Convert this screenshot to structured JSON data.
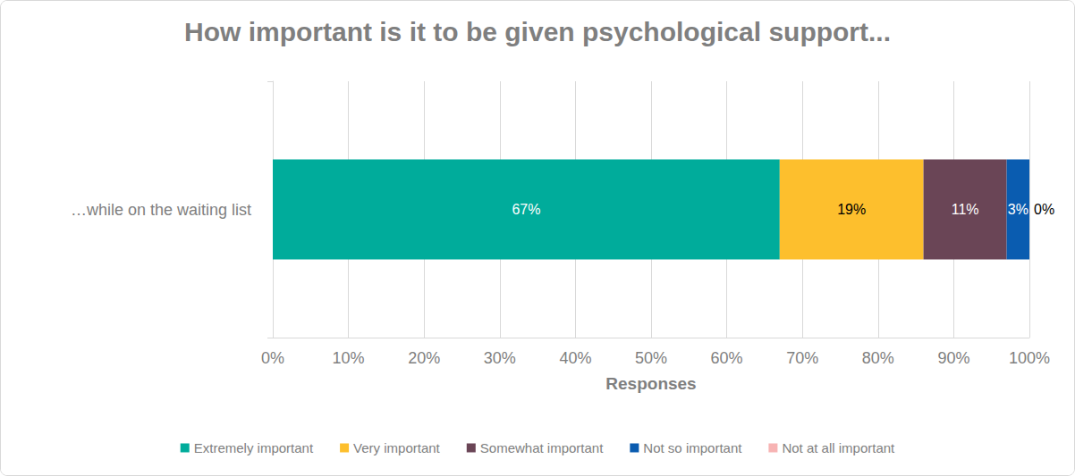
{
  "chart_data": {
    "type": "bar",
    "orientation": "horizontal",
    "stacked": true,
    "data_labels": true,
    "grid": true,
    "legend": "bottom",
    "title": "How important is it to be given psychological support...",
    "xlabel": "Responses",
    "categories": [
      "…while on the waiting list"
    ],
    "xlim": [
      0,
      100
    ],
    "xticks": [
      {
        "value": 0,
        "label": "0%"
      },
      {
        "value": 10,
        "label": "10%"
      },
      {
        "value": 20,
        "label": "20%"
      },
      {
        "value": 30,
        "label": "30%"
      },
      {
        "value": 40,
        "label": "40%"
      },
      {
        "value": 50,
        "label": "50%"
      },
      {
        "value": 60,
        "label": "60%"
      },
      {
        "value": 70,
        "label": "70%"
      },
      {
        "value": 80,
        "label": "80%"
      },
      {
        "value": 90,
        "label": "90%"
      },
      {
        "value": 100,
        "label": "100%"
      }
    ],
    "series": [
      {
        "name": "Extremely important",
        "color": "#00ac9b",
        "values": [
          67
        ],
        "value_labels": [
          "67%"
        ]
      },
      {
        "name": "Very important",
        "color": "#fdbf2d",
        "values": [
          19
        ],
        "value_labels": [
          "19%"
        ]
      },
      {
        "name": "Somewhat important",
        "color": "#6a4556",
        "values": [
          11
        ],
        "value_labels": [
          "11%"
        ]
      },
      {
        "name": "Not so important",
        "color": "#0a5cb0",
        "values": [
          3
        ],
        "value_labels": [
          "3%"
        ]
      },
      {
        "name": "Not at all important",
        "color": "#f7b3b3",
        "values": [
          0
        ],
        "value_labels": [
          "0%"
        ]
      }
    ]
  }
}
